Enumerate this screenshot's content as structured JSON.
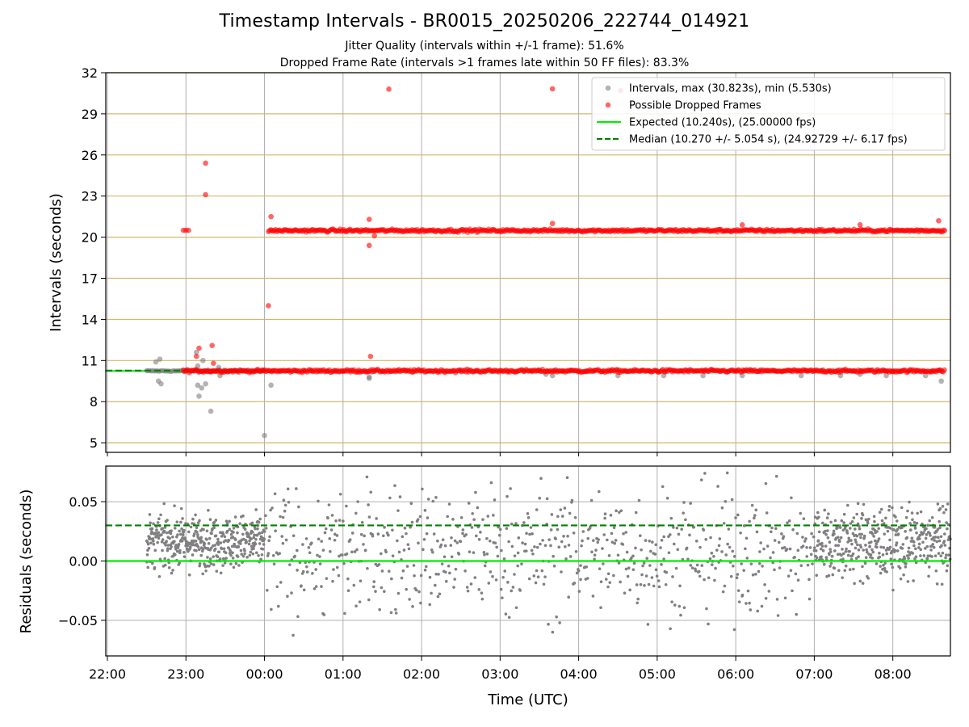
{
  "title": "Timestamp Intervals - BR0015_20250206_222744_014921",
  "subtitle_1": "Jitter Quality (intervals within +/-1 frame): 51.6%",
  "subtitle_2": "Dropped Frame Rate (intervals >1 frames late within 50 FF files): 83.3%",
  "colors": {
    "intervals": "#808080",
    "dropped": "#ff0000",
    "expected": "#00ee00",
    "median": "#007f00",
    "hgrid_top": "#d4b96a",
    "grid": "#b0b0b0"
  },
  "chart_data": [
    {
      "type": "scatter",
      "ylabel": "Intervals (seconds)",
      "xlabel": "",
      "x_range": [
        "22:00",
        "08:40"
      ],
      "ylim": [
        4.3,
        32
      ],
      "yticks": [
        5,
        8,
        11,
        14,
        17,
        20,
        23,
        26,
        29,
        32
      ],
      "grid": "on",
      "legend_position": "top-right",
      "legend": [
        "Intervals, max (30.823s), min (5.530s)",
        "Possible Dropped Frames",
        "Expected (10.240s), (25.00000 fps)",
        "Median (10.270 +/- 5.054 s), (24.92729 +/- 6.17 fps)"
      ],
      "expected_interval": 10.24,
      "median_interval": 10.27,
      "series": [
        {
          "name": "Intervals, max (30.823s), min (5.530s)",
          "description": "dense band of normal intervals near 10.24 s from 22:30 to 08:40",
          "band_level": 10.24,
          "band_range": [
            "22:30",
            "08:40"
          ],
          "outliers": [
            {
              "x": "22:37",
              "y": 10.9
            },
            {
              "x": "22:40",
              "y": 11.1
            },
            {
              "x": "22:39",
              "y": 9.5
            },
            {
              "x": "22:41",
              "y": 9.3
            },
            {
              "x": "23:08",
              "y": 11.6
            },
            {
              "x": "23:09",
              "y": 10.6
            },
            {
              "x": "23:09",
              "y": 9.2
            },
            {
              "x": "23:10",
              "y": 8.4
            },
            {
              "x": "23:12",
              "y": 9.0
            },
            {
              "x": "23:13",
              "y": 11.0
            },
            {
              "x": "23:15",
              "y": 9.3
            },
            {
              "x": "23:19",
              "y": 7.3
            },
            {
              "x": "23:25",
              "y": 10.5
            },
            {
              "x": "23:26",
              "y": 9.9
            },
            {
              "x": "00:00",
              "y": 5.53
            },
            {
              "x": "00:05",
              "y": 9.2
            },
            {
              "x": "01:20",
              "y": 9.8
            },
            {
              "x": "01:20",
              "y": 9.7
            },
            {
              "x": "03:35",
              "y": 10.0
            },
            {
              "x": "03:40",
              "y": 9.9
            },
            {
              "x": "04:30",
              "y": 9.9
            },
            {
              "x": "05:05",
              "y": 9.9
            },
            {
              "x": "05:35",
              "y": 9.9
            },
            {
              "x": "06:05",
              "y": 9.9
            },
            {
              "x": "06:50",
              "y": 9.9
            },
            {
              "x": "07:20",
              "y": 9.9
            },
            {
              "x": "07:35",
              "y": 10.0
            },
            {
              "x": "07:55",
              "y": 9.9
            },
            {
              "x": "08:25",
              "y": 9.9
            },
            {
              "x": "08:37",
              "y": 9.5
            }
          ]
        },
        {
          "name": "Possible Dropped Frames",
          "description": "dropped frames band near 10.24 s from 22:58 to 08:40 and near 20.5 s from 00:03 to 08:40",
          "band_levels": [
            10.24,
            20.48
          ],
          "band_ranges": [
            [
              "22:58",
              "08:40"
            ],
            [
              "00:03",
              "08:40"
            ]
          ],
          "outliers": [
            {
              "x": "22:58",
              "y": 20.5
            },
            {
              "x": "23:00",
              "y": 20.5
            },
            {
              "x": "23:02",
              "y": 20.5
            },
            {
              "x": "23:15",
              "y": 25.4
            },
            {
              "x": "23:15",
              "y": 23.1
            },
            {
              "x": "23:08",
              "y": 11.3
            },
            {
              "x": "23:10",
              "y": 11.9
            },
            {
              "x": "23:20",
              "y": 12.1
            },
            {
              "x": "23:21",
              "y": 10.8
            },
            {
              "x": "00:03",
              "y": 15.0
            },
            {
              "x": "00:05",
              "y": 21.5
            },
            {
              "x": "01:20",
              "y": 21.3
            },
            {
              "x": "01:20",
              "y": 19.4
            },
            {
              "x": "01:24",
              "y": 20.1
            },
            {
              "x": "01:21",
              "y": 11.3
            },
            {
              "x": "01:35",
              "y": 30.8
            },
            {
              "x": "03:40",
              "y": 30.823
            },
            {
              "x": "04:32",
              "y": 30.7
            },
            {
              "x": "03:40",
              "y": 21.0
            },
            {
              "x": "06:05",
              "y": 20.9
            },
            {
              "x": "07:35",
              "y": 20.9
            },
            {
              "x": "08:35",
              "y": 21.2
            }
          ]
        }
      ]
    },
    {
      "type": "scatter",
      "ylabel": "Residuals (seconds)",
      "xlabel": "Time (UTC)",
      "x_range": [
        "22:00",
        "08:40"
      ],
      "xticks": [
        "22:00",
        "23:00",
        "00:00",
        "01:00",
        "02:00",
        "03:00",
        "04:00",
        "05:00",
        "06:00",
        "07:00",
        "08:00"
      ],
      "ylim": [
        -0.08,
        0.08
      ],
      "yticks": [
        -0.05,
        0.0,
        0.05
      ],
      "ytick_labels": [
        "−0.05",
        "0.00",
        "0.05"
      ],
      "grid": "on",
      "reference_lines": [
        {
          "name": "Expected",
          "y": 0.0,
          "style": "solid"
        },
        {
          "name": "Median",
          "y": 0.03,
          "style": "dashed"
        }
      ],
      "series": [
        {
          "name": "",
          "description": "residual scatter: 22:30-00:00 clustered 0.00 to 0.04; 00:00-07:00 spread -0.08 to 0.08 centered near 0.01; 07:00-08:40 clustered -0.02 to 0.04",
          "points": "sampled"
        }
      ]
    }
  ]
}
